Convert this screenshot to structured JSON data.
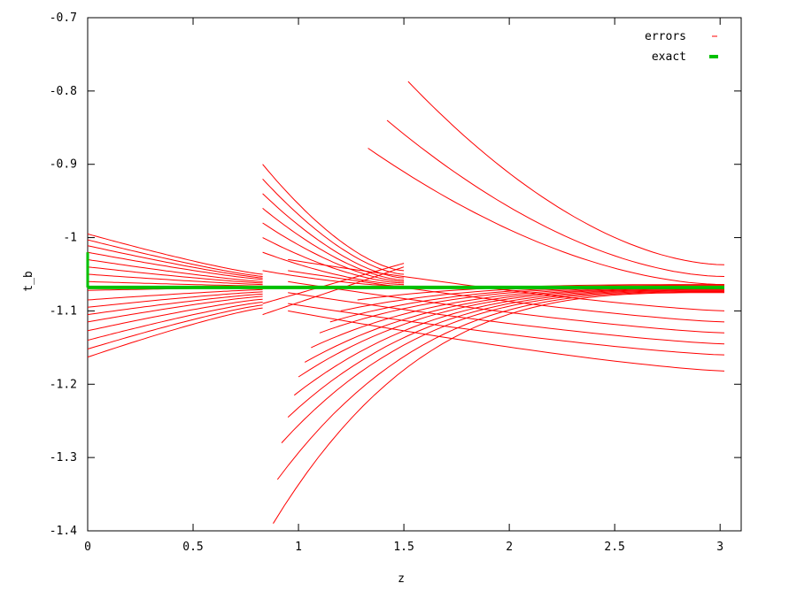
{
  "chart_data": {
    "type": "line",
    "title": "",
    "xlabel": "z",
    "ylabel": "t_b",
    "xlim": [
      0,
      3.1
    ],
    "ylim": [
      -1.4,
      -0.7
    ],
    "xticks": [
      0,
      0.5,
      1,
      1.5,
      2,
      2.5,
      3
    ],
    "yticks": [
      -0.7,
      -0.8,
      -0.9,
      -1,
      -1.1,
      -1.2,
      -1.3,
      -1.4
    ],
    "grid": false,
    "legend": {
      "placement": "top-right",
      "entries": [
        {
          "name": "errors",
          "color": "#ff0000",
          "style": "line"
        },
        {
          "name": "exact",
          "color": "#00c000",
          "style": "thick-line"
        }
      ]
    },
    "exact": {
      "name": "exact",
      "color": "#00c000",
      "value": -1.068,
      "x_range": [
        0,
        3.02
      ]
    },
    "error_groups": {
      "color": "#ff0000",
      "group_a": {
        "x_range": [
          0,
          0.83
        ],
        "start_values": [
          -0.995,
          -1.003,
          -1.011,
          -1.02,
          -1.03,
          -1.04,
          -1.05,
          -1.06,
          -1.072,
          -1.085,
          -1.095,
          -1.105,
          -1.115,
          -1.127,
          -1.14,
          -1.152,
          -1.163
        ],
        "end_values": [
          -1.05,
          -1.053,
          -1.055,
          -1.057,
          -1.06,
          -1.062,
          -1.064,
          -1.066,
          -1.068,
          -1.071,
          -1.074,
          -1.077,
          -1.08,
          -1.084,
          -1.088,
          -1.092,
          -1.096
        ]
      },
      "group_b": {
        "x_range": [
          0.83,
          1.5
        ],
        "start_values": [
          -0.9,
          -0.92,
          -0.94,
          -0.96,
          -0.98,
          -1.0,
          -1.02,
          -1.045
        ],
        "end_values": [
          -1.045,
          -1.05,
          -1.055,
          -1.058,
          -1.06,
          -1.062,
          -1.064,
          -1.066
        ]
      },
      "group_c": {
        "start_x": [
          0.88,
          0.9,
          0.92,
          0.95,
          0.98,
          1.0,
          1.03,
          1.06,
          1.1,
          1.15,
          1.2,
          1.28
        ],
        "start_values": [
          -1.39,
          -1.33,
          -1.28,
          -1.245,
          -1.215,
          -1.19,
          -1.17,
          -1.15,
          -1.13,
          -1.115,
          -1.1,
          -1.085
        ],
        "end_x": 3.02,
        "end_values": [
          -1.075,
          -1.074,
          -1.073,
          -1.072,
          -1.071,
          -1.07,
          -1.069,
          -1.068,
          -1.067,
          -1.066,
          -1.065,
          -1.064
        ]
      },
      "group_d": {
        "x_range": [
          0.95,
          3.02
        ],
        "start_values": [
          -1.03,
          -1.045,
          -1.06,
          -1.075,
          -1.09,
          -1.1
        ],
        "end_values": [
          -1.1,
          -1.115,
          -1.13,
          -1.145,
          -1.16,
          -1.182
        ]
      },
      "group_e": {
        "start_x": [
          1.52,
          1.42,
          1.33
        ],
        "start_values": [
          -0.787,
          -0.84,
          -0.878
        ],
        "end_x": 3.02,
        "end_values": [
          -1.037,
          -1.053,
          -1.064
        ]
      },
      "group_f": {
        "x_range": [
          0.83,
          1.5
        ],
        "start_values": [
          -1.09,
          -1.105
        ],
        "end_values": [
          -1.035,
          -1.04
        ]
      }
    }
  }
}
